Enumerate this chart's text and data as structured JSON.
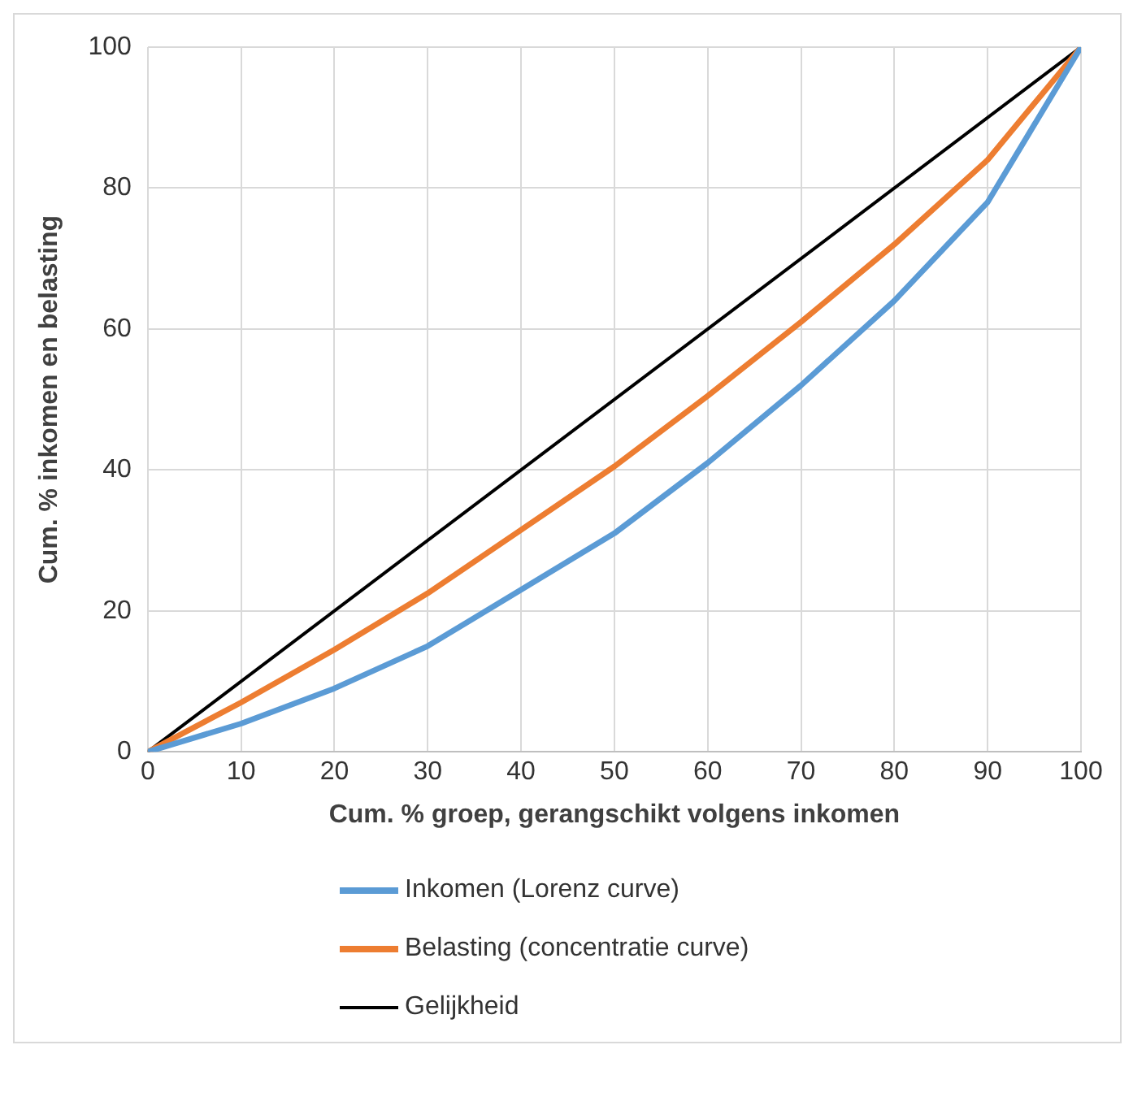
{
  "chart_data": {
    "type": "line",
    "xlabel": "Cum. % groep, gerangschikt volgens inkomen",
    "ylabel": "Cum. % inkomen en belasting",
    "x": [
      0,
      10,
      20,
      30,
      40,
      50,
      60,
      70,
      80,
      90,
      100
    ],
    "series": [
      {
        "name": "Inkomen (Lorenz curve)",
        "color": "#5b9bd5",
        "values": [
          0,
          4,
          9,
          15,
          23,
          31,
          41,
          52,
          64,
          78,
          100
        ]
      },
      {
        "name": "Belasting (concentratie curve)",
        "color": "#ed7d31",
        "values": [
          0,
          7,
          14.5,
          22.5,
          31.5,
          40.5,
          50.5,
          61,
          72,
          84,
          100
        ]
      },
      {
        "name": "Gelijkheid",
        "color": "#000000",
        "x": [
          0,
          100
        ],
        "values": [
          0,
          100
        ]
      }
    ],
    "xlim": [
      0,
      100
    ],
    "xticks": [
      0,
      10,
      20,
      30,
      40,
      50,
      60,
      70,
      80,
      90,
      100
    ],
    "ylim": [
      0,
      100
    ],
    "yticks": [
      0,
      20,
      40,
      60,
      80,
      100
    ],
    "grid": true,
    "legend": "bottom",
    "marker": "none",
    "line_style": "solid"
  }
}
